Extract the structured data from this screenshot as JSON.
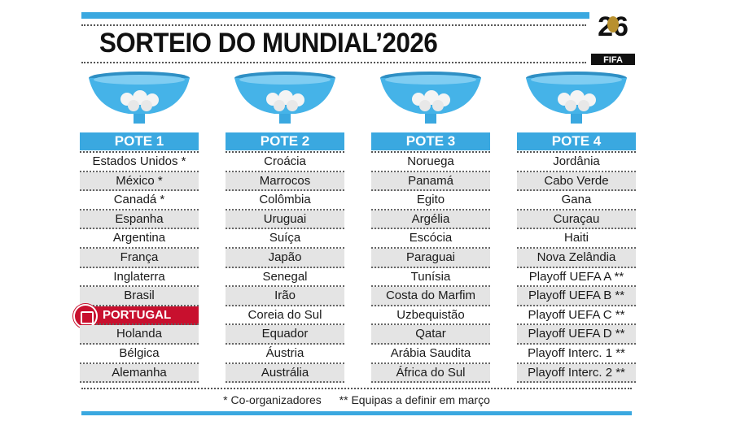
{
  "title": "SORTEIO DO MUNDIAL’2026",
  "logo": {
    "text": "FIFA",
    "number": "26"
  },
  "colors": {
    "accent": "#3aa8e0",
    "highlight": "#c8102e",
    "shade": "#e4e4e4"
  },
  "pots": [
    {
      "label": "POTE 1",
      "teams": [
        "Estados Unidos *",
        "México *",
        "Canadá *",
        "Espanha",
        "Argentina",
        "França",
        "Inglaterra",
        "Brasil",
        "PORTUGAL",
        "Holanda",
        "Bélgica",
        "Alemanha"
      ]
    },
    {
      "label": "POTE 2",
      "teams": [
        "Croácia",
        "Marrocos",
        "Colômbia",
        "Uruguai",
        "Suíça",
        "Japão",
        "Senegal",
        "Irão",
        "Coreia do Sul",
        "Equador",
        "Áustria",
        "Austrália"
      ]
    },
    {
      "label": "POTE 3",
      "teams": [
        "Noruega",
        "Panamá",
        "Egito",
        "Argélia",
        "Escócia",
        "Paraguai",
        "Tunísia",
        "Costa do Marfim",
        "Uzbequistão",
        "Qatar",
        "Arábia Saudita",
        "África do Sul"
      ]
    },
    {
      "label": "POTE 4",
      "teams": [
        "Jordânia",
        "Cabo Verde",
        "Gana",
        "Curaçau",
        "Haiti",
        "Nova Zelândia",
        "Playoff UEFA A **",
        "Playoff UEFA B **",
        "Playoff UEFA C **",
        "Playoff UEFA D **",
        "Playoff Interc. 1 **",
        "Playoff Interc. 2 **"
      ]
    }
  ],
  "footnotes": {
    "hosts": "* Co-organizadores",
    "tbd": "** Equipas a definir em março"
  }
}
